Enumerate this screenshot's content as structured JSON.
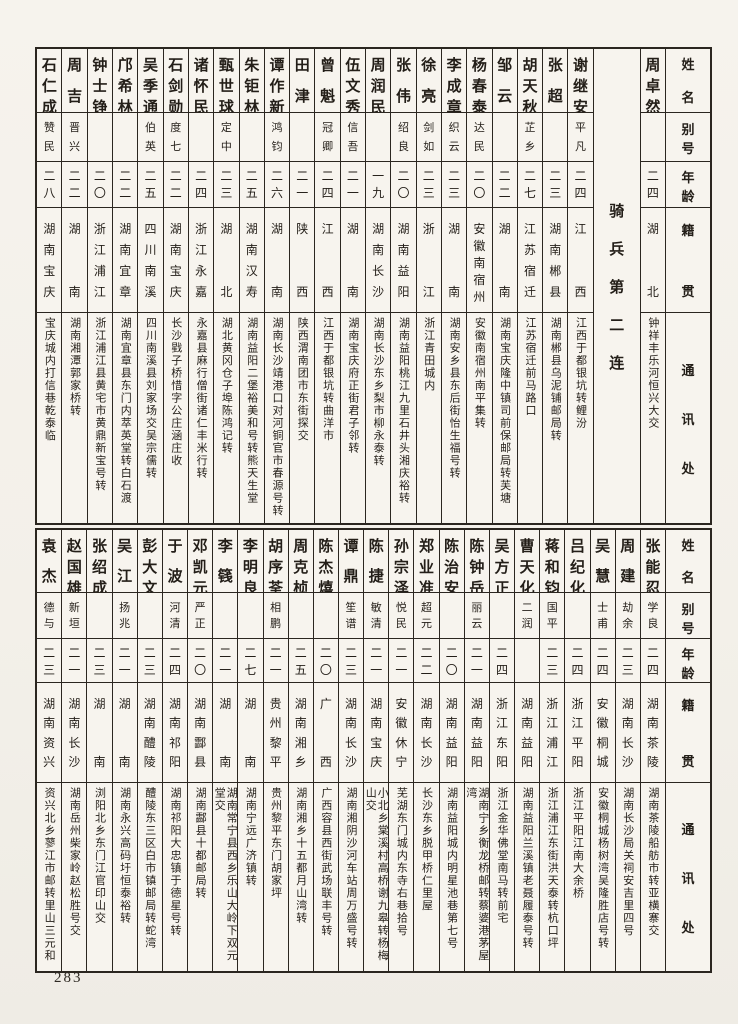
{
  "page": {
    "number": "283"
  },
  "ink_color": "#2b2620",
  "paper_color": "#f3f0ea",
  "headers": {
    "name": "姓名",
    "alias": "别号",
    "age": "年龄",
    "native": "籍贯",
    "address": "通讯处"
  },
  "tables": [
    {
      "id": "top",
      "columns": [
        {
          "name": "周卓然",
          "alias": "",
          "age": "二四",
          "native": "湖北",
          "address": "钟祥丰乐河恒兴大交"
        },
        {
          "section": "骑兵第二连"
        },
        {
          "name": "谢继安",
          "alias": "平凡",
          "age": "二四",
          "native": "江西",
          "address": "江西于都银坑转鲤汾"
        },
        {
          "name": "张超",
          "alias": "",
          "age": "二三",
          "native": "湖南郴县",
          "address": "湖南郴县乌泥铺邮局转"
        },
        {
          "name": "胡天秋",
          "alias": "芷乡",
          "age": "二七",
          "native": "江苏宿迁",
          "address": "江苏宿迁前马路口"
        },
        {
          "name": "邹云",
          "alias": "",
          "age": "二二",
          "native": "湖南",
          "address": "湖南宝庆隆中镇司前保邮局转芙塘"
        },
        {
          "name": "杨春泰",
          "alias": "达民",
          "age": "二〇",
          "native": "安徽南宿州",
          "address": "安徽南宿州南平集转"
        },
        {
          "name": "李成章",
          "alias": "织云",
          "age": "二三",
          "native": "湖南",
          "address": "湖南安乡县东后街怡生福号转"
        },
        {
          "name": "徐亮",
          "alias": "剑如",
          "age": "二三",
          "native": "浙江",
          "address": "浙江青田城内"
        },
        {
          "name": "张伟",
          "alias": "绍良",
          "age": "二〇",
          "native": "湖南益阳",
          "address": "湖南益阳桃江九里石井头湘庆裕转"
        },
        {
          "name": "周润民",
          "alias": "",
          "age": "一九",
          "native": "湖南长沙",
          "address": "湖南长沙东乡梨市柳永泰转"
        },
        {
          "name": "伍文秀",
          "alias": "信吾",
          "age": "二一",
          "native": "湖南",
          "address": "湖南宝庆府正街君子邻转"
        },
        {
          "name": "曾魁",
          "alias": "冠卿",
          "age": "二四",
          "native": "江西",
          "address": "江西于都银坑转曲洋市"
        },
        {
          "name": "田津",
          "alias": "",
          "age": "二一",
          "native": "陕西",
          "address": "陕西渭南团市东街探交"
        },
        {
          "name": "谭作新",
          "alias": "鸿钧",
          "age": "二六",
          "native": "湖南",
          "address": "湖南长沙靖港口对河铜官市春源号转"
        },
        {
          "name": "朱钜林",
          "alias": "",
          "age": "二五",
          "native": "湖南汉寿",
          "address": "湖南益阳二堡裕美和号转熊天生堂"
        },
        {
          "name": "甄世球",
          "alias": "定中",
          "age": "二三",
          "native": "湖北",
          "address": "湖北黄冈仓子埠陈鸿记转"
        },
        {
          "name": "诸怀民",
          "alias": "",
          "age": "二四",
          "native": "浙江永嘉",
          "address": "永嘉县麻行僧街诸仁丰米行转"
        },
        {
          "name": "石剑勋",
          "alias": "度七",
          "age": "二二",
          "native": "湖南宝庆",
          "address": "长沙戥子桥惜字公庄涵庄收"
        },
        {
          "name": "吴季通",
          "alias": "伯英",
          "age": "二五",
          "native": "四川南溪",
          "address": "四川南溪县刘家场交吴宗儒转"
        },
        {
          "name": "邝希林",
          "alias": "",
          "age": "二二",
          "native": "湖南宜章",
          "address": "湖南宜章县东门内萃英堂转白石渡"
        },
        {
          "name": "钟士铮",
          "alias": "",
          "age": "二〇",
          "native": "浙江浦江",
          "address": "浙江浦江县黄宅市黄鼎新宝号转"
        },
        {
          "name": "周吉",
          "alias": "晋兴",
          "age": "二二",
          "native": "湖南",
          "address": "湖南湘潭郭家桥转"
        },
        {
          "name": "石仁成",
          "alias": "赞民",
          "age": "二八",
          "native": "湖南宝庆",
          "address": "宝庆城内打信巷乾泰临"
        }
      ]
    },
    {
      "id": "bottom",
      "columns": [
        {
          "name": "张能忍",
          "alias": "学良",
          "age": "二四",
          "native": "湖南茶陵",
          "address": "湖南茶陵船舫市转亚横寨交"
        },
        {
          "name": "周建",
          "alias": "劫余",
          "age": "二三",
          "native": "湖南长沙",
          "address": "湖南长沙局关祠安吉里四号"
        },
        {
          "name": "吴慧",
          "alias": "士甫",
          "age": "二四",
          "native": "安徽桐城",
          "address": "安徽桐城杨树湾吴隆胜店号转"
        },
        {
          "name": "吕纪化",
          "alias": "",
          "age": "二四",
          "native": "浙江平阳",
          "address": "浙江平阳江南大余桥"
        },
        {
          "name": "蒋和钧",
          "alias": "国平",
          "age": "二三",
          "native": "浙江浦江",
          "address": "浙江浦江东街洪天泰转杭口坪"
        },
        {
          "name": "曹天化",
          "alias": "二润",
          "age": "",
          "native": "湖南益阳",
          "address": "湖南益阳兰溪镇老聂履泰号转"
        },
        {
          "name": "吴方正",
          "alias": "",
          "age": "二四",
          "native": "浙江东阳",
          "address": "浙江金华佛堂南马转前宅"
        },
        {
          "name": "陈钟岳",
          "alias": "丽云",
          "age": "二一",
          "native": "湖南益阳",
          "address": "湖南宁乡衡龙桥邮转蔡婆港茅屋湾"
        },
        {
          "name": "陈治安",
          "alias": "",
          "age": "二〇",
          "native": "湖南益阳",
          "address": "湖南益阳城内明星池巷第七号"
        },
        {
          "name": "郑业准",
          "alias": "超元",
          "age": "二二",
          "native": "湖南长沙",
          "address": "长沙东乡脱甲桥仁里屋"
        },
        {
          "name": "孙宗泽",
          "alias": "悦民",
          "age": "二一",
          "native": "安徽休宁",
          "address": "芜湖东门城内东寺右巷拾号"
        },
        {
          "name": "陈捷",
          "alias": "敏清",
          "age": "二一",
          "native": "湖南宝庆",
          "address": "小北乡棠溪村高桥谢九皋转杨梅山交"
        },
        {
          "name": "谭鼎",
          "alias": "笙谱",
          "age": "二三",
          "native": "湖南长沙",
          "address": "湖南湘阴沙河车站周万盛号转"
        },
        {
          "name": "陈杰熺",
          "alias": "",
          "age": "二〇",
          "native": "广西",
          "address": "广西容县西街武场联丰号转"
        },
        {
          "name": "周克桢",
          "alias": "",
          "age": "二五",
          "native": "湖南湘乡",
          "address": "湖南湘乡十五都月山湾转"
        },
        {
          "name": "胡序荃",
          "alias": "相鹏",
          "age": "二一",
          "native": "贵州黎平",
          "address": "贵州黎平东门胡家坪"
        },
        {
          "name": "李明良",
          "alias": "",
          "age": "二七",
          "native": "湖南",
          "address": "湖南宁远广济镇转"
        },
        {
          "name": "李篯",
          "alias": "",
          "age": "二一",
          "native": "湖南",
          "address": "湖南常宁县西乡乐山大岭下双元堂交"
        },
        {
          "name": "邓凯元",
          "alias": "严正",
          "age": "二〇",
          "native": "湖南酃县",
          "address": "湖南酃县十都邮局转"
        },
        {
          "name": "于波",
          "alias": "河清",
          "age": "二四",
          "native": "湖南祁阳",
          "address": "湖南祁阳大忠镇于德星号转"
        },
        {
          "name": "彭大文",
          "alias": "",
          "age": "二三",
          "native": "湖南醴陵",
          "address": "醴陵东三区白市镇邮局转蛇湾"
        },
        {
          "name": "吴江",
          "alias": "扬兆",
          "age": "二一",
          "native": "湖南",
          "address": "湖南永兴高码圩恒泰裕转"
        },
        {
          "name": "张绍成",
          "alias": "",
          "age": "二三",
          "native": "湖南",
          "address": "浏阳北乡东门江官印山交"
        },
        {
          "name": "赵国雄",
          "alias": "新垣",
          "age": "二一",
          "native": "湖南长沙",
          "address": "湖南岳州柴家岭赵松胜号交"
        },
        {
          "name": "袁杰",
          "alias": "德与",
          "age": "二三",
          "native": "湖南资兴",
          "address": "资兴北乡蓼江市邮转里山三元和"
        }
      ]
    }
  ]
}
